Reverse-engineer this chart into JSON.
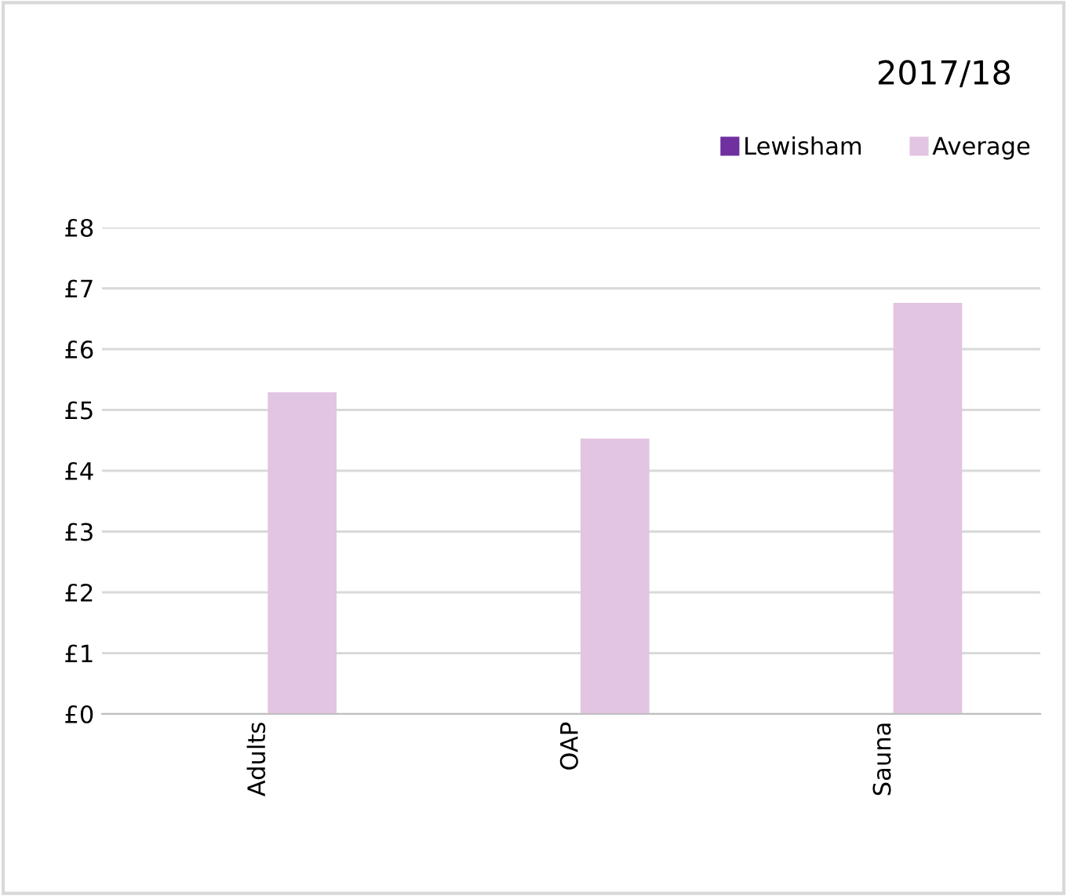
{
  "chart_data": {
    "type": "bar",
    "title": "2017/18",
    "categories": [
      "Adults",
      "OAP",
      "Sauna"
    ],
    "series": [
      {
        "name": "Lewisham",
        "color": "#7030a0",
        "values": [
          null,
          null,
          null
        ]
      },
      {
        "name": "Average",
        "color": "#e2c5e2",
        "values": [
          5.29,
          4.53,
          6.76
        ]
      }
    ],
    "ylim": [
      0,
      8
    ],
    "yticks": [
      {
        "value": 0,
        "label": "£0"
      },
      {
        "value": 1,
        "label": "£1"
      },
      {
        "value": 2,
        "label": "£2"
      },
      {
        "value": 3,
        "label": "£3"
      },
      {
        "value": 4,
        "label": "£4"
      },
      {
        "value": 5,
        "label": "£5"
      },
      {
        "value": 6,
        "label": "£6"
      },
      {
        "value": 7,
        "label": "£7"
      },
      {
        "value": 8,
        "label": "£8"
      }
    ],
    "grid": "y",
    "legend": "top right"
  }
}
